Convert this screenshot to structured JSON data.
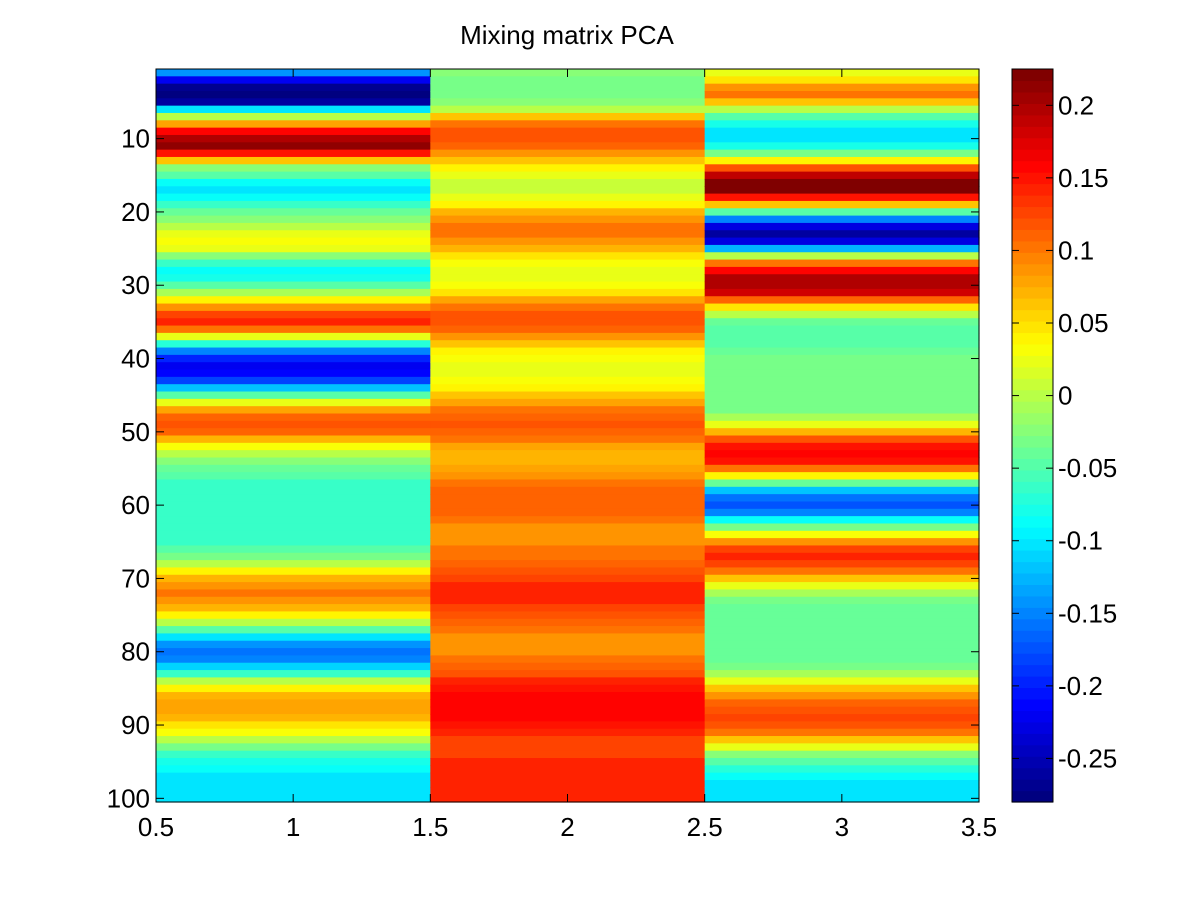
{
  "chart_data": {
    "type": "heatmap",
    "title": "Mixing matrix PCA",
    "xlabel": "",
    "ylabel": "",
    "xlim": [
      0.5,
      3.5
    ],
    "ylim": [
      0.5,
      100.5
    ],
    "y_reversed": true,
    "x_ticks": [
      "0.5",
      "1",
      "1.5",
      "2",
      "2.5",
      "3",
      "3.5"
    ],
    "y_ticks": [
      "10",
      "20",
      "30",
      "40",
      "50",
      "60",
      "70",
      "80",
      "90",
      "100"
    ],
    "colorbar": {
      "colormap": "jet",
      "clim": [
        -0.28,
        0.225
      ],
      "ticks": [
        "0.2",
        "0.15",
        "0.1",
        "0.05",
        "0",
        "-0.05",
        "-0.1",
        "-0.15",
        "-0.2",
        "-0.25"
      ]
    },
    "grid": false,
    "columns": [
      1,
      2,
      3
    ],
    "rows_count": 100,
    "column_profiles": [
      {
        "column": 1,
        "row_values": [
          [
            1,
            -0.14
          ],
          [
            2,
            -0.22
          ],
          [
            3,
            -0.27
          ],
          [
            4,
            -0.28
          ],
          [
            5,
            -0.26
          ],
          [
            6,
            -0.1
          ],
          [
            7,
            0.0
          ],
          [
            8,
            0.08
          ],
          [
            9,
            0.16
          ],
          [
            10,
            0.2
          ],
          [
            11,
            0.21
          ],
          [
            12,
            0.15
          ],
          [
            13,
            0.06
          ],
          [
            14,
            -0.02
          ],
          [
            15,
            -0.05
          ],
          [
            16,
            -0.09
          ],
          [
            17,
            -0.1
          ],
          [
            18,
            -0.09
          ],
          [
            19,
            -0.06
          ],
          [
            20,
            -0.04
          ],
          [
            21,
            -0.02
          ],
          [
            22,
            0.0
          ],
          [
            23,
            0.02
          ],
          [
            24,
            0.03
          ],
          [
            25,
            0.02
          ],
          [
            26,
            -0.02
          ],
          [
            27,
            -0.06
          ],
          [
            28,
            -0.09
          ],
          [
            29,
            -0.08
          ],
          [
            30,
            -0.05
          ],
          [
            31,
            -0.01
          ],
          [
            32,
            0.04
          ],
          [
            33,
            0.09
          ],
          [
            34,
            0.13
          ],
          [
            35,
            0.14
          ],
          [
            36,
            0.1
          ],
          [
            37,
            0.02
          ],
          [
            38,
            -0.07
          ],
          [
            39,
            -0.15
          ],
          [
            40,
            -0.2
          ],
          [
            41,
            -0.22
          ],
          [
            42,
            -0.21
          ],
          [
            43,
            -0.18
          ],
          [
            44,
            -0.12
          ],
          [
            45,
            -0.05
          ],
          [
            46,
            0.02
          ],
          [
            47,
            0.08
          ],
          [
            48,
            0.11
          ],
          [
            49,
            0.12
          ],
          [
            50,
            0.11
          ],
          [
            51,
            0.07
          ],
          [
            52,
            0.03
          ],
          [
            53,
            0.0
          ],
          [
            54,
            -0.02
          ],
          [
            55,
            -0.04
          ],
          [
            56,
            -0.05
          ],
          [
            57,
            -0.06
          ],
          [
            58,
            -0.06
          ],
          [
            59,
            -0.06
          ],
          [
            60,
            -0.06
          ],
          [
            61,
            -0.06
          ],
          [
            62,
            -0.06
          ],
          [
            63,
            -0.06
          ],
          [
            64,
            -0.06
          ],
          [
            65,
            -0.06
          ],
          [
            66,
            -0.05
          ],
          [
            67,
            -0.03
          ],
          [
            68,
            0.0
          ],
          [
            69,
            0.04
          ],
          [
            70,
            0.07
          ],
          [
            71,
            0.09
          ],
          [
            72,
            0.1
          ],
          [
            73,
            0.09
          ],
          [
            74,
            0.07
          ],
          [
            75,
            0.04
          ],
          [
            76,
            0.0
          ],
          [
            77,
            -0.05
          ],
          [
            78,
            -0.1
          ],
          [
            79,
            -0.14
          ],
          [
            80,
            -0.16
          ],
          [
            81,
            -0.15
          ],
          [
            82,
            -0.11
          ],
          [
            83,
            -0.06
          ],
          [
            84,
            0.0
          ],
          [
            85,
            0.04
          ],
          [
            86,
            0.07
          ],
          [
            87,
            0.08
          ],
          [
            88,
            0.08
          ],
          [
            89,
            0.07
          ],
          [
            90,
            0.05
          ],
          [
            91,
            0.03
          ],
          [
            92,
            0.0
          ],
          [
            93,
            -0.03
          ],
          [
            94,
            -0.06
          ],
          [
            95,
            -0.08
          ],
          [
            96,
            -0.09
          ],
          [
            97,
            -0.1
          ],
          [
            98,
            -0.1
          ],
          [
            99,
            -0.1
          ],
          [
            100,
            -0.1
          ]
        ]
      },
      {
        "column": 2,
        "row_values": [
          [
            1,
            -0.02
          ],
          [
            2,
            -0.03
          ],
          [
            3,
            -0.03
          ],
          [
            4,
            -0.03
          ],
          [
            5,
            -0.02
          ],
          [
            6,
            0.0
          ],
          [
            7,
            0.06
          ],
          [
            8,
            0.1
          ],
          [
            9,
            0.12
          ],
          [
            10,
            0.12
          ],
          [
            11,
            0.11
          ],
          [
            12,
            0.09
          ],
          [
            13,
            0.06
          ],
          [
            14,
            0.04
          ],
          [
            15,
            0.02
          ],
          [
            16,
            0.01
          ],
          [
            17,
            0.01
          ],
          [
            18,
            0.02
          ],
          [
            19,
            0.04
          ],
          [
            20,
            0.07
          ],
          [
            21,
            0.09
          ],
          [
            22,
            0.1
          ],
          [
            23,
            0.1
          ],
          [
            24,
            0.09
          ],
          [
            25,
            0.07
          ],
          [
            26,
            0.05
          ],
          [
            27,
            0.03
          ],
          [
            28,
            0.02
          ],
          [
            29,
            0.02
          ],
          [
            30,
            0.03
          ],
          [
            31,
            0.05
          ],
          [
            32,
            0.08
          ],
          [
            33,
            0.1
          ],
          [
            34,
            0.12
          ],
          [
            35,
            0.12
          ],
          [
            36,
            0.11
          ],
          [
            37,
            0.09
          ],
          [
            38,
            0.06
          ],
          [
            39,
            0.04
          ],
          [
            40,
            0.03
          ],
          [
            41,
            0.02
          ],
          [
            42,
            0.02
          ],
          [
            43,
            0.03
          ],
          [
            44,
            0.04
          ],
          [
            45,
            0.06
          ],
          [
            46,
            0.08
          ],
          [
            47,
            0.1
          ],
          [
            48,
            0.11
          ],
          [
            49,
            0.12
          ],
          [
            50,
            0.11
          ],
          [
            51,
            0.1
          ],
          [
            52,
            0.08
          ],
          [
            53,
            0.07
          ],
          [
            54,
            0.07
          ],
          [
            55,
            0.08
          ],
          [
            56,
            0.09
          ],
          [
            57,
            0.1
          ],
          [
            58,
            0.11
          ],
          [
            59,
            0.11
          ],
          [
            60,
            0.11
          ],
          [
            61,
            0.11
          ],
          [
            62,
            0.1
          ],
          [
            63,
            0.09
          ],
          [
            64,
            0.09
          ],
          [
            65,
            0.09
          ],
          [
            66,
            0.1
          ],
          [
            67,
            0.1
          ],
          [
            68,
            0.11
          ],
          [
            69,
            0.12
          ],
          [
            70,
            0.13
          ],
          [
            71,
            0.14
          ],
          [
            72,
            0.14
          ],
          [
            73,
            0.14
          ],
          [
            74,
            0.13
          ],
          [
            75,
            0.12
          ],
          [
            76,
            0.11
          ],
          [
            77,
            0.1
          ],
          [
            78,
            0.09
          ],
          [
            79,
            0.09
          ],
          [
            80,
            0.09
          ],
          [
            81,
            0.1
          ],
          [
            82,
            0.11
          ],
          [
            83,
            0.12
          ],
          [
            84,
            0.14
          ],
          [
            85,
            0.15
          ],
          [
            86,
            0.16
          ],
          [
            87,
            0.16
          ],
          [
            88,
            0.16
          ],
          [
            89,
            0.16
          ],
          [
            90,
            0.15
          ],
          [
            91,
            0.14
          ],
          [
            92,
            0.13
          ],
          [
            93,
            0.13
          ],
          [
            94,
            0.13
          ],
          [
            95,
            0.14
          ],
          [
            96,
            0.14
          ],
          [
            97,
            0.14
          ],
          [
            98,
            0.14
          ],
          [
            99,
            0.14
          ],
          [
            100,
            0.14
          ]
        ]
      },
      {
        "column": 3,
        "row_values": [
          [
            1,
            0.02
          ],
          [
            2,
            0.05
          ],
          [
            3,
            0.09
          ],
          [
            4,
            0.1
          ],
          [
            5,
            0.06
          ],
          [
            6,
            0.0
          ],
          [
            7,
            -0.05
          ],
          [
            8,
            -0.08
          ],
          [
            9,
            -0.1
          ],
          [
            10,
            -0.1
          ],
          [
            11,
            -0.08
          ],
          [
            12,
            -0.03
          ],
          [
            13,
            0.04
          ],
          [
            14,
            0.12
          ],
          [
            15,
            0.19
          ],
          [
            16,
            0.22
          ],
          [
            17,
            0.22
          ],
          [
            18,
            0.15
          ],
          [
            19,
            0.06
          ],
          [
            20,
            -0.05
          ],
          [
            21,
            -0.15
          ],
          [
            22,
            -0.23
          ],
          [
            23,
            -0.26
          ],
          [
            24,
            -0.23
          ],
          [
            25,
            -0.13
          ],
          [
            26,
            0.0
          ],
          [
            27,
            0.1
          ],
          [
            28,
            0.16
          ],
          [
            29,
            0.2
          ],
          [
            30,
            0.2
          ],
          [
            31,
            0.18
          ],
          [
            32,
            0.11
          ],
          [
            33,
            0.05
          ],
          [
            34,
            0.0
          ],
          [
            35,
            -0.04
          ],
          [
            36,
            -0.05
          ],
          [
            37,
            -0.05
          ],
          [
            38,
            -0.05
          ],
          [
            39,
            -0.04
          ],
          [
            40,
            -0.03
          ],
          [
            41,
            -0.03
          ],
          [
            42,
            -0.03
          ],
          [
            43,
            -0.03
          ],
          [
            44,
            -0.03
          ],
          [
            45,
            -0.03
          ],
          [
            46,
            -0.03
          ],
          [
            47,
            -0.03
          ],
          [
            48,
            -0.01
          ],
          [
            49,
            0.02
          ],
          [
            50,
            0.07
          ],
          [
            51,
            0.12
          ],
          [
            52,
            0.15
          ],
          [
            53,
            0.16
          ],
          [
            54,
            0.15
          ],
          [
            55,
            0.1
          ],
          [
            56,
            0.04
          ],
          [
            57,
            -0.04
          ],
          [
            58,
            -0.12
          ],
          [
            59,
            -0.16
          ],
          [
            60,
            -0.17
          ],
          [
            61,
            -0.15
          ],
          [
            62,
            -0.09
          ],
          [
            63,
            -0.03
          ],
          [
            64,
            0.03
          ],
          [
            65,
            0.09
          ],
          [
            66,
            0.13
          ],
          [
            67,
            0.14
          ],
          [
            68,
            0.13
          ],
          [
            69,
            0.1
          ],
          [
            70,
            0.06
          ],
          [
            71,
            0.02
          ],
          [
            72,
            -0.01
          ],
          [
            73,
            -0.03
          ],
          [
            74,
            -0.04
          ],
          [
            75,
            -0.04
          ],
          [
            76,
            -0.04
          ],
          [
            77,
            -0.04
          ],
          [
            78,
            -0.04
          ],
          [
            79,
            -0.04
          ],
          [
            80,
            -0.04
          ],
          [
            81,
            -0.04
          ],
          [
            82,
            -0.03
          ],
          [
            83,
            -0.01
          ],
          [
            84,
            0.02
          ],
          [
            85,
            0.06
          ],
          [
            86,
            0.09
          ],
          [
            87,
            0.11
          ],
          [
            88,
            0.12
          ],
          [
            89,
            0.13
          ],
          [
            90,
            0.12
          ],
          [
            91,
            0.1
          ],
          [
            92,
            0.06
          ],
          [
            93,
            0.02
          ],
          [
            94,
            -0.02
          ],
          [
            95,
            -0.05
          ],
          [
            96,
            -0.07
          ],
          [
            97,
            -0.09
          ],
          [
            98,
            -0.1
          ],
          [
            99,
            -0.1
          ],
          [
            100,
            -0.1
          ]
        ]
      }
    ]
  }
}
